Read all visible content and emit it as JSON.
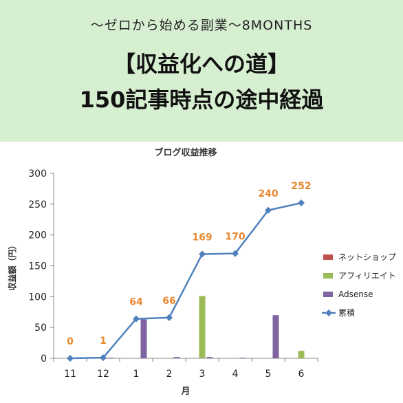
{
  "banner": {
    "subtitle": "〜ゼロから始める副業〜8MONTHS",
    "headline_line1": "【収益化への道】",
    "headline_line2": "150記事時点の途中経過",
    "background": "#d7efd1"
  },
  "chart_data": {
    "type": "bar",
    "title": "ブログ収益推移",
    "xlabel": "月",
    "ylabel": "収益額（円）",
    "ylim": [
      0,
      300
    ],
    "yticks": [
      "0",
      "50",
      "100",
      "150",
      "200",
      "250",
      "300"
    ],
    "categories": [
      "11",
      "12",
      "1",
      "2",
      "3",
      "4",
      "5",
      "6"
    ],
    "grid": false,
    "legend_position": "right",
    "series": [
      {
        "name": "ネットショップ",
        "kind": "bar",
        "color": "#c0504d",
        "values": [
          0,
          0,
          0,
          0,
          0,
          0,
          0,
          0
        ]
      },
      {
        "name": "アフィリエイト",
        "kind": "bar",
        "color": "#9bbb59",
        "values": [
          0,
          0,
          0,
          0,
          101,
          0,
          0,
          12
        ]
      },
      {
        "name": "Adsense",
        "kind": "bar",
        "color": "#8064a2",
        "values": [
          0,
          1,
          63,
          2,
          2,
          1,
          70,
          0
        ]
      },
      {
        "name": "累積",
        "kind": "line",
        "color": "#4f81bd",
        "label_color": "#e8872e",
        "values": [
          0,
          1,
          64,
          66,
          169,
          170,
          240,
          252
        ],
        "labels": [
          "0",
          "1",
          "64",
          "66",
          "169",
          "170",
          "240",
          "252"
        ]
      }
    ]
  }
}
